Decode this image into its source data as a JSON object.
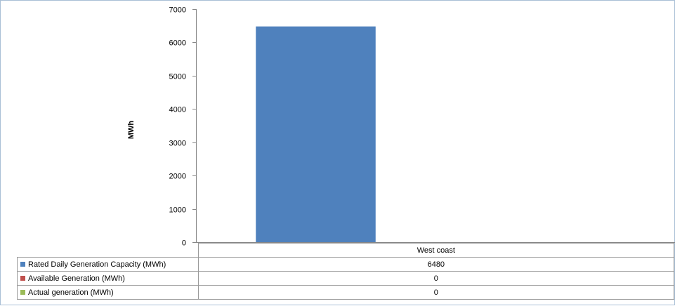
{
  "chart_data": {
    "type": "bar",
    "categories": [
      "West coast"
    ],
    "series": [
      {
        "name": "Rated Daily Generation Capacity (MWh)",
        "values": [
          6480
        ],
        "color": "#4f81bd",
        "value_labels": [
          "6480"
        ]
      },
      {
        "name": "Available Generation (MWh)",
        "values": [
          0
        ],
        "color": "#c0504d",
        "value_labels": [
          "0"
        ]
      },
      {
        "name": "Actual generation (MWh)",
        "values": [
          0
        ],
        "color": "#9bbb59",
        "value_labels": [
          "0"
        ]
      }
    ],
    "ylabel": "MWh",
    "xlabel": "",
    "ylim": [
      0,
      7000
    ],
    "yticks": [
      "0",
      "1000",
      "2000",
      "3000",
      "4000",
      "5000",
      "6000",
      "7000"
    ],
    "grid": false,
    "legend": "data-table"
  }
}
